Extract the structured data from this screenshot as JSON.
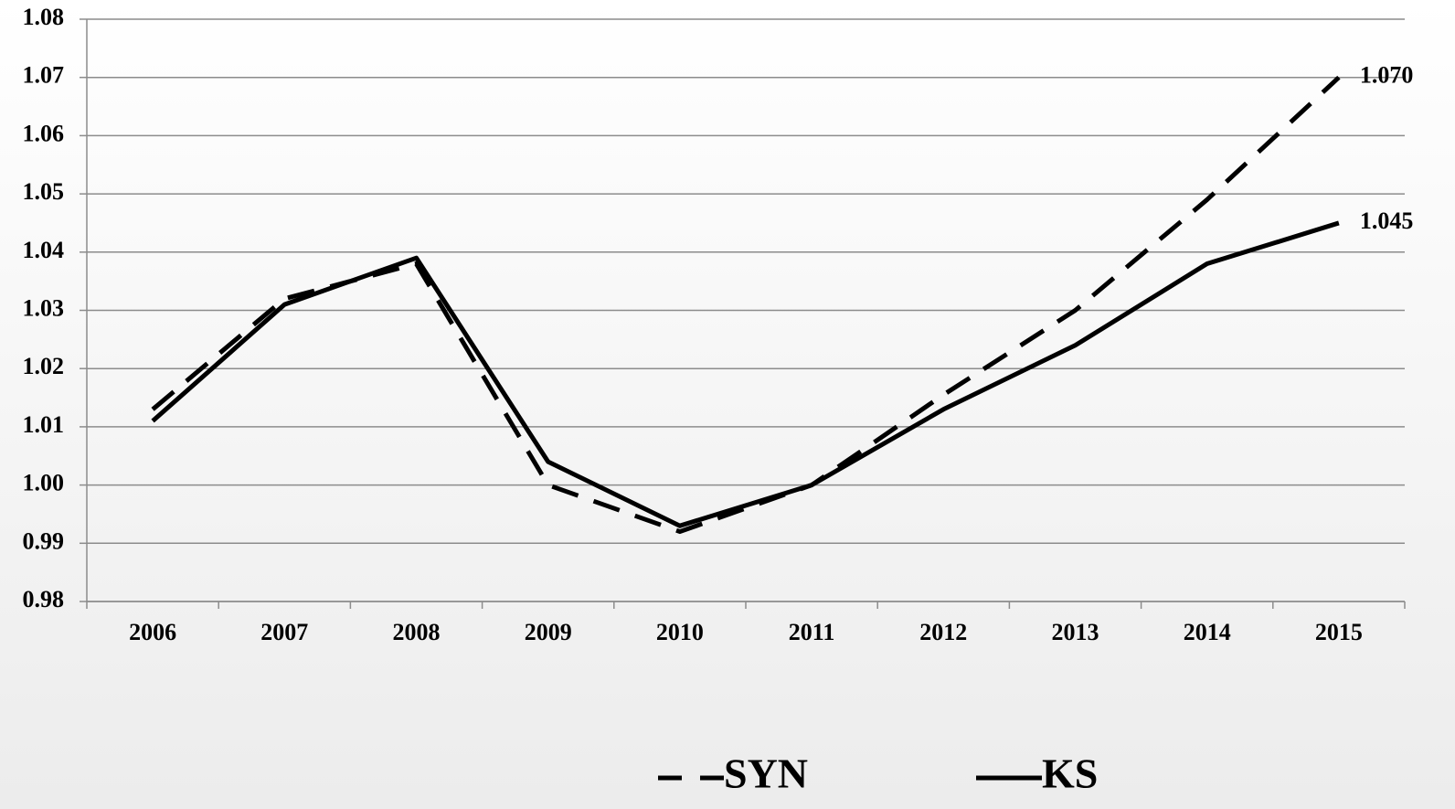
{
  "chart_data": {
    "type": "line",
    "categories": [
      "2006",
      "2007",
      "2008",
      "2009",
      "2010",
      "2011",
      "2012",
      "2013",
      "2014",
      "2015"
    ],
    "series": [
      {
        "name": "SYN",
        "color": "#000000",
        "dash": true,
        "values": [
          1.013,
          1.032,
          1.038,
          1.0,
          0.992,
          1.0,
          1.0155,
          1.03,
          1.049,
          1.07
        ],
        "value_labels": [
          null,
          null,
          null,
          null,
          null,
          null,
          null,
          null,
          null,
          "1.070"
        ]
      },
      {
        "name": "KS",
        "color": "#000000",
        "dash": false,
        "values": [
          1.011,
          1.031,
          1.039,
          1.004,
          0.993,
          1.0,
          1.013,
          1.024,
          1.038,
          1.045
        ],
        "value_labels": [
          null,
          null,
          null,
          null,
          null,
          null,
          null,
          null,
          null,
          "1.045"
        ]
      }
    ],
    "ylim": [
      0.98,
      1.08
    ],
    "yticks": [
      0.98,
      0.99,
      {
        "value": 1.0,
        "label": "1.00"
      },
      1.01,
      1.02,
      1.03,
      1.04,
      1.05,
      1.06,
      1.07,
      1.08
    ],
    "grid": true,
    "legend": "bottom"
  }
}
